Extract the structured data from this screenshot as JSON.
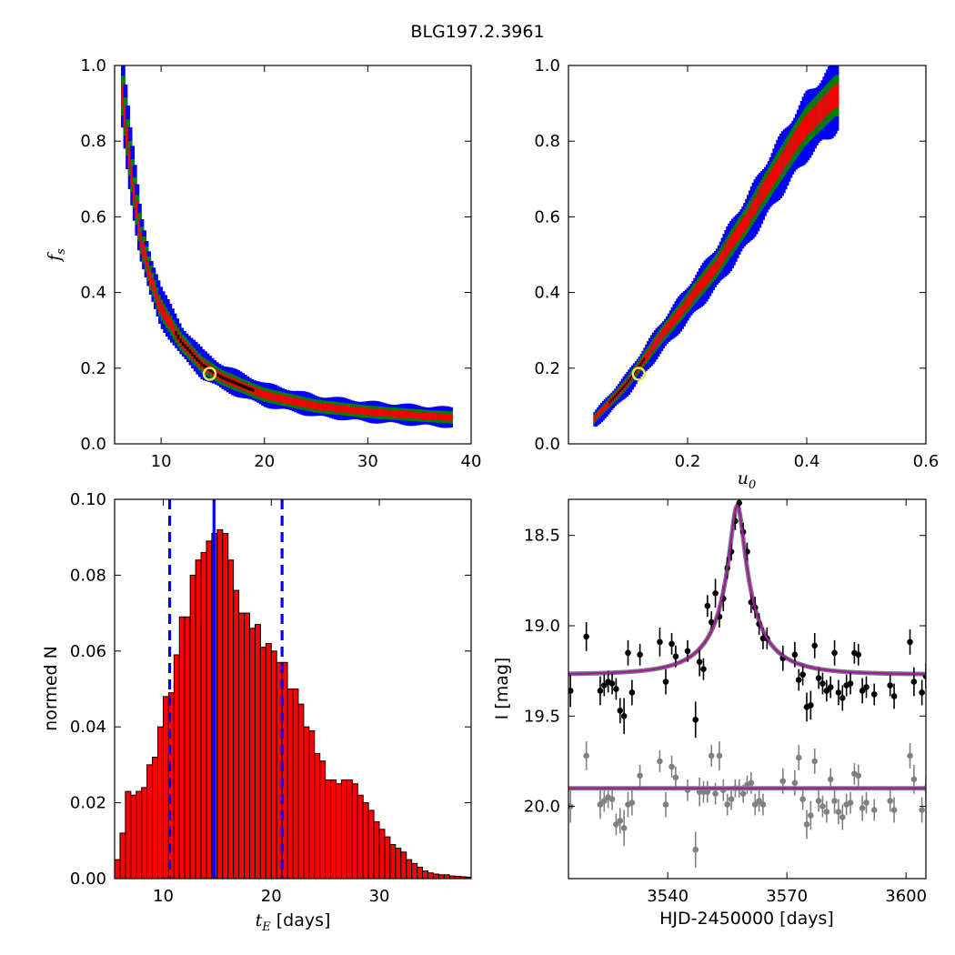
{
  "figure": {
    "title": "BLG197.2.3961"
  },
  "chart_data": [
    {
      "type": "heatmap",
      "panel": "top-left",
      "xlabel": "",
      "ylabel": "f_s",
      "xlim": [
        5.5,
        40
      ],
      "ylim": [
        0,
        1
      ],
      "xticks": [
        10,
        20,
        30,
        40
      ],
      "yticks": [
        0.0,
        0.2,
        0.4,
        0.6,
        0.8,
        1.0
      ],
      "confidence_levels": [
        {
          "level": "outer",
          "color": "#0000ff"
        },
        {
          "level": "middle",
          "color": "#008000"
        },
        {
          "level": "inner",
          "color": "#ff0000"
        },
        {
          "level": "peak",
          "color": "#000000"
        }
      ],
      "curve": [
        [
          6.3,
          0.92
        ],
        [
          7,
          0.75
        ],
        [
          8,
          0.55
        ],
        [
          9,
          0.44
        ],
        [
          10,
          0.36
        ],
        [
          12,
          0.27
        ],
        [
          14,
          0.21
        ],
        [
          16,
          0.175
        ],
        [
          20,
          0.13
        ],
        [
          25,
          0.1
        ],
        [
          30,
          0.085
        ],
        [
          35,
          0.075
        ],
        [
          38,
          0.07
        ]
      ],
      "best_fit": {
        "x": 14.7,
        "y": 0.185
      }
    },
    {
      "type": "heatmap",
      "panel": "top-right",
      "xlabel": "u_0",
      "ylabel": "",
      "xlim": [
        0.0,
        0.6
      ],
      "ylim": [
        0,
        1
      ],
      "xticks": [
        0.2,
        0.4,
        0.6
      ],
      "yticks": [
        0.0,
        0.2,
        0.4,
        0.6,
        0.8,
        1.0
      ],
      "curve": [
        [
          0.045,
          0.065
        ],
        [
          0.1,
          0.16
        ],
        [
          0.15,
          0.27
        ],
        [
          0.2,
          0.37
        ],
        [
          0.25,
          0.47
        ],
        [
          0.3,
          0.59
        ],
        [
          0.35,
          0.72
        ],
        [
          0.4,
          0.84
        ],
        [
          0.45,
          0.92
        ]
      ],
      "best_fit": {
        "x": 0.118,
        "y": 0.185
      }
    },
    {
      "type": "bar",
      "panel": "bottom-left",
      "xlabel": "t_E [days]",
      "ylabel": "normed N",
      "xlim": [
        5.5,
        38.5
      ],
      "ylim": [
        0,
        0.1
      ],
      "xticks": [
        10,
        20,
        30
      ],
      "yticks": [
        0.0,
        0.02,
        0.04,
        0.06,
        0.08,
        0.1
      ],
      "bin_start": 5.5,
      "bin_width": 0.5,
      "values": [
        0.005,
        0.012,
        0.023,
        0.022,
        0.023,
        0.024,
        0.03,
        0.032,
        0.04,
        0.048,
        0.049,
        0.059,
        0.069,
        0.069,
        0.08,
        0.084,
        0.086,
        0.089,
        0.091,
        0.092,
        0.091,
        0.084,
        0.076,
        0.07,
        0.07,
        0.066,
        0.067,
        0.061,
        0.062,
        0.06,
        0.057,
        0.057,
        0.05,
        0.05,
        0.046,
        0.04,
        0.039,
        0.033,
        0.031,
        0.026,
        0.026,
        0.025,
        0.026,
        0.026,
        0.025,
        0.022,
        0.02,
        0.018,
        0.015,
        0.013,
        0.011,
        0.009,
        0.008,
        0.007,
        0.005,
        0.004,
        0.003,
        0.002,
        0.0015,
        0.0012,
        0.001,
        0.001,
        0.0007,
        0.0006,
        0.0005,
        0.0004
      ],
      "bar_color": "#ff0000",
      "median": 14.7,
      "interval": [
        10.6,
        21.0
      ]
    },
    {
      "type": "scatter",
      "panel": "bottom-right",
      "xlabel": "HJD-2450000 [days]",
      "ylabel": "I [mag]",
      "xlim": [
        3515,
        3605
      ],
      "ylim": [
        20.4,
        18.3
      ],
      "xticks": [
        3540,
        3570,
        3600
      ],
      "yticks": [
        18.5,
        19.0,
        19.5,
        20.0
      ],
      "model": {
        "t0": 3557.5,
        "u0": 0.12,
        "tE": 14.7,
        "fs": 0.185,
        "base": 19.27
      },
      "series": [
        {
          "name": "",
          "color": "#000000",
          "points": [
            [
              3515.5,
              19.36,
              0.09
            ],
            [
              3519.5,
              19.06,
              0.08
            ],
            [
              3523,
              19.36,
              0.08
            ],
            [
              3524,
              19.33,
              0.06
            ],
            [
              3525,
              19.31,
              0.06
            ],
            [
              3526,
              19.32,
              0.06
            ],
            [
              3527,
              19.35,
              0.06
            ],
            [
              3528,
              19.47,
              0.07
            ],
            [
              3529,
              19.5,
              0.1
            ],
            [
              3530,
              19.15,
              0.07
            ],
            [
              3531,
              19.37,
              0.07
            ],
            [
              3533,
              19.16,
              0.06
            ],
            [
              3538,
              19.09,
              0.08
            ],
            [
              3539.5,
              19.31,
              0.07
            ],
            [
              3541,
              19.1,
              0.06
            ],
            [
              3542,
              19.17,
              0.06
            ],
            [
              3545,
              19.14,
              0.06
            ],
            [
              3547,
              19.52,
              0.1
            ],
            [
              3548,
              19.2,
              0.08
            ],
            [
              3549,
              19.24,
              0.06
            ],
            [
              3550,
              18.89,
              0.06
            ],
            [
              3551,
              18.98,
              0.06
            ],
            [
              3552,
              18.82,
              0.08
            ],
            [
              3553,
              18.95,
              0.06
            ],
            [
              3554,
              18.85,
              0.07
            ],
            [
              3555,
              18.68,
              0.06
            ],
            [
              3556,
              18.59,
              0.05
            ],
            [
              3557,
              18.42,
              0.05
            ],
            [
              3558,
              18.32,
              0.04
            ],
            [
              3559,
              18.48,
              0.05
            ],
            [
              3560,
              18.59,
              0.05
            ],
            [
              3561,
              18.87,
              0.06
            ],
            [
              3562,
              18.9,
              0.06
            ],
            [
              3563,
              18.99,
              0.06
            ],
            [
              3564,
              19.07,
              0.06
            ],
            [
              3565,
              19.07,
              0.06
            ],
            [
              3569,
              19.18,
              0.07
            ],
            [
              3572,
              19.16,
              0.07
            ],
            [
              3573,
              19.3,
              0.06
            ],
            [
              3574,
              19.27,
              0.06
            ],
            [
              3575,
              19.45,
              0.08
            ],
            [
              3576,
              19.44,
              0.08
            ],
            [
              3577,
              19.11,
              0.07
            ],
            [
              3578,
              19.29,
              0.06
            ],
            [
              3579,
              19.32,
              0.06
            ],
            [
              3580,
              19.36,
              0.06
            ],
            [
              3581,
              19.34,
              0.06
            ],
            [
              3582,
              19.15,
              0.07
            ],
            [
              3583,
              19.37,
              0.07
            ],
            [
              3584,
              19.4,
              0.07
            ],
            [
              3585,
              19.33,
              0.06
            ],
            [
              3586,
              19.32,
              0.06
            ],
            [
              3587,
              19.15,
              0.06
            ],
            [
              3588,
              19.16,
              0.06
            ],
            [
              3589,
              19.36,
              0.07
            ],
            [
              3590,
              19.34,
              0.06
            ],
            [
              3592,
              19.38,
              0.06
            ],
            [
              3596,
              19.33,
              0.06
            ],
            [
              3597,
              19.39,
              0.07
            ],
            [
              3601,
              19.09,
              0.07
            ],
            [
              3602,
              19.31,
              0.08
            ],
            [
              3604,
              19.37,
              0.07
            ],
            [
              3605,
              19.28,
              0.07
            ]
          ]
        },
        {
          "name": "",
          "color": "#808080",
          "points": [
            [
              3515.5,
              20.0,
              0.09
            ],
            [
              3519.5,
              19.72,
              0.08
            ],
            [
              3523,
              19.99,
              0.08
            ],
            [
              3524,
              19.97,
              0.06
            ],
            [
              3525,
              19.95,
              0.06
            ],
            [
              3526,
              19.96,
              0.06
            ],
            [
              3527,
              20.1,
              0.06
            ],
            [
              3528,
              20.08,
              0.07
            ],
            [
              3529,
              20.12,
              0.1
            ],
            [
              3530,
              19.99,
              0.07
            ],
            [
              3531,
              19.98,
              0.07
            ],
            [
              3533,
              19.83,
              0.06
            ],
            [
              3538,
              19.75,
              0.06
            ],
            [
              3539.5,
              19.99,
              0.07
            ],
            [
              3541,
              19.78,
              0.06
            ],
            [
              3542,
              19.84,
              0.06
            ],
            [
              3545,
              19.91,
              0.06
            ],
            [
              3547,
              20.24,
              0.1
            ],
            [
              3548,
              19.92,
              0.08
            ],
            [
              3549,
              19.92,
              0.06
            ],
            [
              3550,
              19.92,
              0.06
            ],
            [
              3551,
              19.72,
              0.06
            ],
            [
              3552,
              19.93,
              0.06
            ],
            [
              3553,
              19.72,
              0.08
            ],
            [
              3554,
              19.91,
              0.06
            ],
            [
              3555,
              19.99,
              0.06
            ],
            [
              3556,
              19.96,
              0.06
            ],
            [
              3557,
              19.9,
              0.05
            ],
            [
              3558,
              19.9,
              0.05
            ],
            [
              3559,
              19.93,
              0.05
            ],
            [
              3560,
              19.88,
              0.05
            ],
            [
              3561,
              19.87,
              0.06
            ],
            [
              3562,
              19.99,
              0.06
            ],
            [
              3563,
              19.97,
              0.06
            ],
            [
              3564,
              19.99,
              0.06
            ],
            [
              3569,
              19.86,
              0.07
            ],
            [
              3572,
              19.87,
              0.07
            ],
            [
              3573,
              19.73,
              0.07
            ],
            [
              3574,
              19.96,
              0.06
            ],
            [
              3575,
              20.1,
              0.08
            ],
            [
              3576,
              20.05,
              0.08
            ],
            [
              3577,
              19.75,
              0.07
            ],
            [
              3578,
              19.97,
              0.06
            ],
            [
              3579,
              20.0,
              0.06
            ],
            [
              3580,
              20.03,
              0.06
            ],
            [
              3581,
              19.85,
              0.06
            ],
            [
              3582,
              19.97,
              0.07
            ],
            [
              3583,
              20.03,
              0.07
            ],
            [
              3584,
              20.06,
              0.07
            ],
            [
              3585,
              19.99,
              0.06
            ],
            [
              3586,
              19.98,
              0.06
            ],
            [
              3587,
              19.82,
              0.06
            ],
            [
              3588,
              19.83,
              0.06
            ],
            [
              3589,
              20.01,
              0.07
            ],
            [
              3590,
              19.98,
              0.06
            ],
            [
              3592,
              20.02,
              0.06
            ],
            [
              3596,
              19.97,
              0.06
            ],
            [
              3597,
              20.02,
              0.07
            ],
            [
              3601,
              19.72,
              0.07
            ],
            [
              3602,
              19.85,
              0.08
            ],
            [
              3604,
              20.02,
              0.07
            ],
            [
              3605,
              19.9,
              0.07
            ]
          ]
        }
      ],
      "model_lines": [
        {
          "kind": "event",
          "colors": [
            "#808080",
            "#9b1f9b"
          ]
        },
        {
          "kind": "flat",
          "level": 19.9,
          "colors": [
            "#808080",
            "#9b1f9b"
          ]
        }
      ]
    }
  ]
}
